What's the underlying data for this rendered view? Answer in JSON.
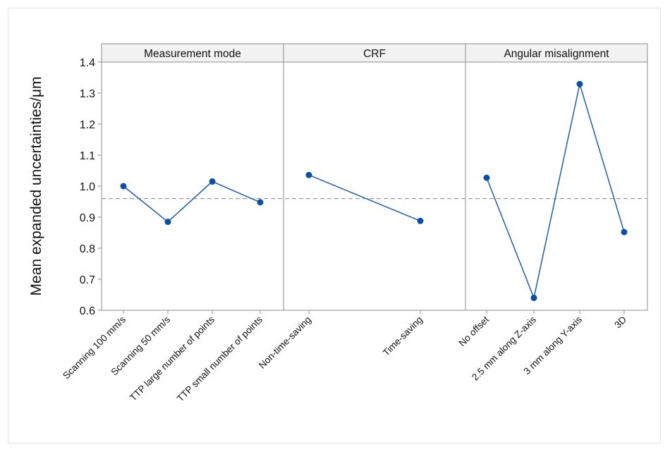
{
  "chart_data": {
    "type": "line",
    "ylabel": "Mean expanded uncertainties/μm",
    "ylim": [
      0.6,
      1.4
    ],
    "yticks": [
      "0.6",
      "0.7",
      "0.8",
      "0.9",
      "1.0",
      "1.1",
      "1.2",
      "1.3",
      "1.4"
    ],
    "yticks_values": [
      0.6,
      0.7,
      0.8,
      0.9,
      1.0,
      1.1,
      1.2,
      1.3,
      1.4
    ],
    "reference_line": 0.96,
    "colors": {
      "line": "#1f5fa8",
      "marker": "#0d4fa0",
      "reference": "#9a9a9a",
      "axis": "#8c8c8c",
      "header": "#f2f2f2"
    },
    "panels": [
      {
        "title": "Measurement mode",
        "categories": [
          "Scanning 100 mm/s",
          "Scanning 50 mm/s",
          "TTP large number of points",
          "TTP small number of points"
        ],
        "values": [
          1.0,
          0.885,
          1.015,
          0.948
        ]
      },
      {
        "title": "CRF",
        "categories": [
          "Non-time-saving",
          "Time-saving"
        ],
        "values": [
          1.036,
          0.888
        ]
      },
      {
        "title": "Angular misalignment",
        "categories": [
          "No offset",
          "2.5 mm along Z-axis",
          "3 mm along Y-axis",
          "3D"
        ],
        "values": [
          1.027,
          0.64,
          1.329,
          0.852
        ]
      }
    ]
  }
}
